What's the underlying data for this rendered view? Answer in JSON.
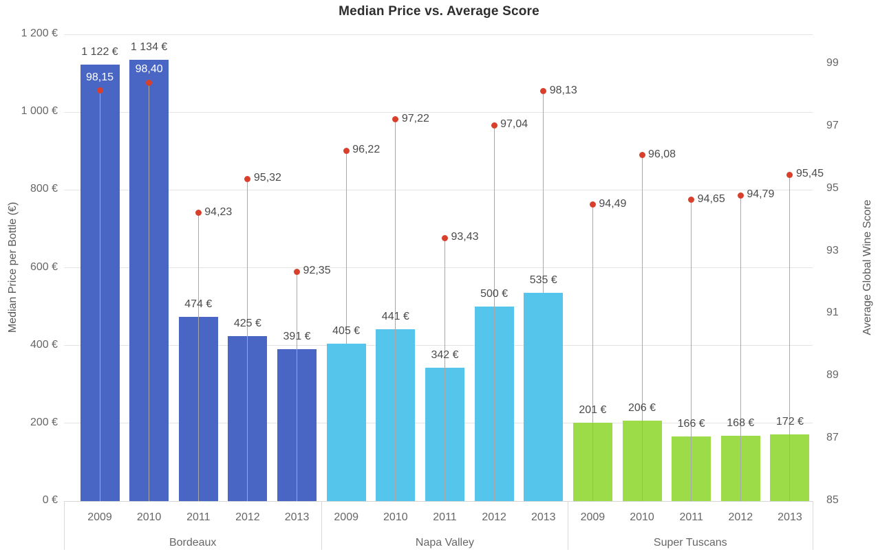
{
  "chart_data": {
    "type": "bar",
    "subtype": "grouped bars with dual-axis scatter markers",
    "title": "Median Price vs. Average Score",
    "y_left": {
      "label": "Median Price per Bottle (€)",
      "lim": [
        0,
        1200
      ],
      "tick_step": 200,
      "tick_labels": [
        "0 €",
        "200 €",
        "400 €",
        "600 €",
        "800 €",
        "1 000 €",
        "1 200 €"
      ]
    },
    "y_right": {
      "label": "Average Global Wine Score",
      "lim": [
        85,
        99
      ],
      "tick_step": 2,
      "tick_labels": [
        "85",
        "87",
        "89",
        "91",
        "93",
        "95",
        "97",
        "99"
      ]
    },
    "grid": true,
    "legend": "none",
    "marker_color": "#d8402c",
    "grid_color": "#e3e3e3",
    "groups": [
      {
        "label": "Bordeaux",
        "bar_color": "#4a66c5",
        "categories": [
          "2009",
          "2010",
          "2011",
          "2012",
          "2013"
        ],
        "prices": [
          1122,
          1134,
          474,
          425,
          391
        ],
        "price_labels": [
          "1 122 €",
          "1 134 €",
          "474 €",
          "425 €",
          "391 €"
        ],
        "scores": [
          98.15,
          98.4,
          94.23,
          95.32,
          92.35
        ],
        "score_labels": [
          "98,15",
          "98,40",
          "94,23",
          "95,32",
          "92,35"
        ]
      },
      {
        "label": "Napa Valley",
        "bar_color": "#55c5ec",
        "categories": [
          "2009",
          "2010",
          "2011",
          "2012",
          "2013"
        ],
        "prices": [
          405,
          441,
          342,
          500,
          535
        ],
        "price_labels": [
          "405 €",
          "441 €",
          "342 €",
          "500 €",
          "535 €"
        ],
        "scores": [
          96.22,
          97.22,
          93.43,
          97.04,
          98.13
        ],
        "score_labels": [
          "96,22",
          "97,22",
          "93,43",
          "97,04",
          "98,13"
        ]
      },
      {
        "label": "Super Tuscans",
        "bar_color": "#9ddc49",
        "categories": [
          "2009",
          "2010",
          "2011",
          "2012",
          "2013"
        ],
        "prices": [
          201,
          206,
          166,
          168,
          172
        ],
        "price_labels": [
          "201 €",
          "206 €",
          "166 €",
          "168 €",
          "172 €"
        ],
        "scores": [
          94.49,
          96.08,
          94.65,
          94.79,
          95.45
        ],
        "score_labels": [
          "94,49",
          "96,08",
          "94,65",
          "94,79",
          "95,45"
        ]
      }
    ]
  }
}
